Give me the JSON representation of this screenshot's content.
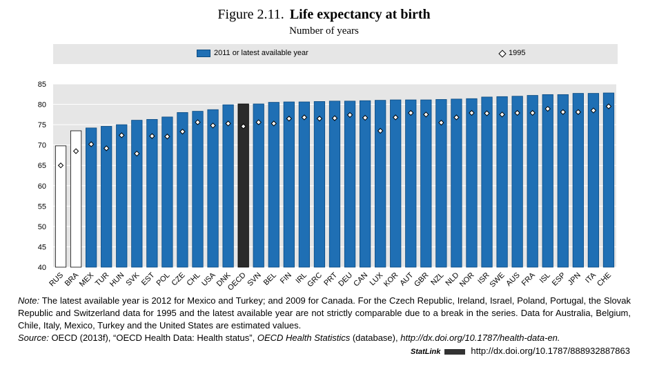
{
  "header": {
    "figure_label": "Figure 2.11.",
    "title": "Life expectancy at birth",
    "subtitle": "Number of years"
  },
  "legend": {
    "bar_label": "2011 or latest available year",
    "marker_label": "1995"
  },
  "notes": {
    "note_label": "Note:",
    "note_text": "The latest available year is 2012 for Mexico and Turkey; and 2009 for Canada. For the Czech Republic, Ireland, Israel, Poland, Portugal, the Slovak Republic and Switzerland data for 1995 and the latest available year are not strictly comparable due to a break in the series. Data for Australia, Belgium, Chile, Italy, Mexico, Turkey and the United States are estimated values.",
    "source_label": "Source:",
    "source_text_1": "OECD (2013f), “OECD Health Data: Health status”,",
    "source_italic": "OECD Health Statistics",
    "source_text_2": "(database),",
    "source_url": "http://dx.doi.org/10.1787/health-data-en.",
    "statlink_label": "StatLink",
    "statlink_url": "http://dx.doi.org/10.1787/888932887863"
  },
  "colors": {
    "oecd_bar": "#1f6fb4",
    "oecd_bar_border": "#0b4a80",
    "average_bar": "#2b2b2b",
    "partner_bar": "#ffffff",
    "plot_background": "#e6e6e6",
    "legend_background": "#e6e6e6"
  },
  "chart_data": {
    "type": "bar",
    "categories": [
      "RUS",
      "BRA",
      "MEX",
      "TUR",
      "HUN",
      "SVK",
      "EST",
      "POL",
      "CZE",
      "CHL",
      "USA",
      "DNK",
      "OECD",
      "SVN",
      "BEL",
      "FIN",
      "IRL",
      "GRC",
      "PRT",
      "DEU",
      "CAN",
      "LUX",
      "KOR",
      "AUT",
      "GBR",
      "NZL",
      "NLD",
      "NOR",
      "ISR",
      "SWE",
      "AUS",
      "FRA",
      "ISL",
      "ESP",
      "JPN",
      "ITA",
      "CHE"
    ],
    "series": [
      {
        "name": "2011 or latest available year",
        "values": [
          69.8,
          73.5,
          74.2,
          74.6,
          75.0,
          76.1,
          76.3,
          76.9,
          78.0,
          78.3,
          78.7,
          79.9,
          80.1,
          80.1,
          80.5,
          80.6,
          80.6,
          80.7,
          80.8,
          80.8,
          80.9,
          81.0,
          81.1,
          81.1,
          81.1,
          81.2,
          81.3,
          81.4,
          81.8,
          81.9,
          82.0,
          82.2,
          82.4,
          82.4,
          82.7,
          82.7,
          82.8
        ],
        "bar_style": [
          "partner",
          "partner",
          "oecd",
          "oecd",
          "oecd",
          "oecd",
          "oecd",
          "oecd",
          "oecd",
          "oecd",
          "oecd",
          "oecd",
          "average",
          "oecd",
          "oecd",
          "oecd",
          "oecd",
          "oecd",
          "oecd",
          "oecd",
          "oecd",
          "oecd",
          "oecd",
          "oecd",
          "oecd",
          "oecd",
          "oecd",
          "oecd",
          "oecd",
          "oecd",
          "oecd",
          "oecd",
          "oecd",
          "oecd",
          "oecd",
          "oecd",
          "oecd"
        ]
      },
      {
        "name": "1995",
        "marker": "diamond",
        "values": [
          65.0,
          68.5,
          70.2,
          69.2,
          72.4,
          67.9,
          72.2,
          72.1,
          73.3,
          75.6,
          74.8,
          75.3,
          74.6,
          75.6,
          75.3,
          76.5,
          76.8,
          76.5,
          76.6,
          77.4,
          76.7,
          73.5,
          76.8,
          77.9,
          77.5,
          75.5,
          76.8,
          77.9,
          77.8,
          77.5,
          77.9,
          77.9,
          78.9,
          78.1,
          78.1,
          78.5,
          79.5
        ]
      }
    ],
    "ylim": [
      40,
      85
    ],
    "yticks": [
      40,
      45,
      50,
      55,
      60,
      65,
      70,
      75,
      80,
      85
    ],
    "grid": true,
    "legend_position": "top"
  }
}
